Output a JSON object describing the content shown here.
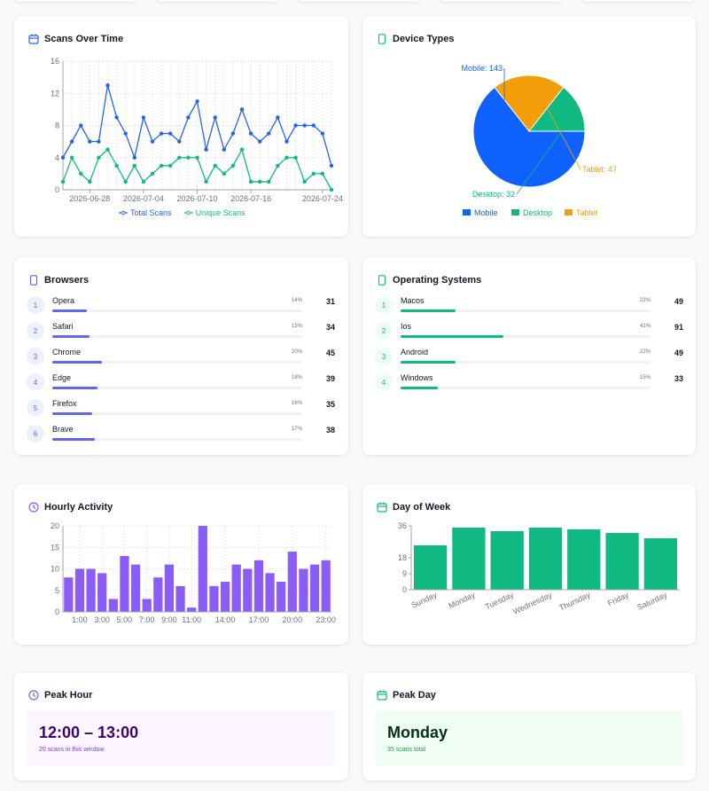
{
  "colors": {
    "blue": "#2563eb",
    "green": "#10b981",
    "purple": "#8b5cf6",
    "orange": "#f59e0b",
    "mobile": "#0f62fe",
    "tablet": "#f59e0b",
    "desktop": "#10b981"
  },
  "scans_over_time": {
    "title": "Scans Over Time",
    "icon": "calendar-icon",
    "legend": [
      "Total Scans",
      "Unique Scans"
    ]
  },
  "device_types": {
    "title": "Device Types",
    "icon": "smartphone-icon",
    "labels": {
      "mobile": "Mobile: 143",
      "tablet": "Tablet: 47",
      "desktop": "Desktop: 32"
    },
    "legend": [
      "Mobile",
      "Desktop",
      "Tablet"
    ]
  },
  "browsers": {
    "title": "Browsers",
    "icon": "smartphone-icon",
    "items": [
      {
        "rank": "1",
        "label": "Opera",
        "pct": "14%",
        "count": "31",
        "fraction": 0.14
      },
      {
        "rank": "2",
        "label": "Safari",
        "pct": "15%",
        "count": "34",
        "fraction": 0.15
      },
      {
        "rank": "3",
        "label": "Chrome",
        "pct": "20%",
        "count": "45",
        "fraction": 0.2
      },
      {
        "rank": "4",
        "label": "Edge",
        "pct": "18%",
        "count": "39",
        "fraction": 0.18
      },
      {
        "rank": "5",
        "label": "Firefox",
        "pct": "16%",
        "count": "35",
        "fraction": 0.16
      },
      {
        "rank": "6",
        "label": "Brave",
        "pct": "17%",
        "count": "38",
        "fraction": 0.17
      }
    ]
  },
  "operating_systems": {
    "title": "Operating Systems",
    "icon": "smartphone-icon",
    "items": [
      {
        "rank": "1",
        "label": "Macos",
        "pct": "22%",
        "count": "49",
        "fraction": 0.22
      },
      {
        "rank": "2",
        "label": "Ios",
        "pct": "41%",
        "count": "91",
        "fraction": 0.41
      },
      {
        "rank": "3",
        "label": "Android",
        "pct": "22%",
        "count": "49",
        "fraction": 0.22
      },
      {
        "rank": "4",
        "label": "Windows",
        "pct": "15%",
        "count": "33",
        "fraction": 0.15
      }
    ]
  },
  "hourly_activity": {
    "title": "Hourly Activity",
    "icon": "clock-icon"
  },
  "day_of_week": {
    "title": "Day of Week",
    "icon": "calendar-icon"
  },
  "peak_hour": {
    "title": "Peak Hour",
    "icon": "clock-icon",
    "value": "12:00 – 13:00",
    "sub": "20 scans in this window"
  },
  "peak_day": {
    "title": "Peak Day",
    "icon": "calendar-icon",
    "value": "Monday",
    "sub": "35 scans total"
  },
  "chart_data": [
    {
      "type": "line",
      "title": "Scans Over Time",
      "x": [
        "2026-06-25",
        "2026-06-26",
        "2026-06-27",
        "2026-06-28",
        "2026-06-29",
        "2026-06-30",
        "2026-07-01",
        "2026-07-02",
        "2026-07-03",
        "2026-07-04",
        "2026-07-05",
        "2026-07-06",
        "2026-07-07",
        "2026-07-08",
        "2026-07-09",
        "2026-07-10",
        "2026-07-11",
        "2026-07-12",
        "2026-07-13",
        "2026-07-14",
        "2026-07-15",
        "2026-07-16",
        "2026-07-17",
        "2026-07-18",
        "2026-07-19",
        "2026-07-20",
        "2026-07-21",
        "2026-07-22",
        "2026-07-23",
        "2026-07-24",
        "2026-07-25"
      ],
      "xticks": [
        "2026-06-28",
        "2026-07-04",
        "2026-07-10",
        "2026-07-16",
        "2026-07-24"
      ],
      "series": [
        {
          "name": "Total Scans",
          "values": [
            4,
            6,
            8,
            6,
            6,
            13,
            9,
            7,
            4,
            9,
            6,
            7,
            7,
            6,
            9,
            11,
            5,
            9,
            5,
            7,
            10,
            7,
            6,
            7,
            9,
            6,
            8,
            8,
            8,
            7,
            3
          ]
        },
        {
          "name": "Unique Scans",
          "values": [
            1,
            4,
            2,
            1,
            4,
            5,
            3,
            1,
            3,
            1,
            2,
            3,
            3,
            4,
            4,
            4,
            1,
            3,
            2,
            3,
            5,
            1,
            1,
            1,
            3,
            4,
            4,
            1,
            2,
            2,
            0
          ]
        }
      ],
      "ylim": [
        0,
        16
      ],
      "yticks": [
        0,
        4,
        8,
        12,
        16
      ],
      "grid": true,
      "legend": "bottom"
    },
    {
      "type": "pie",
      "title": "Device Types",
      "categories": [
        "Mobile",
        "Tablet",
        "Desktop"
      ],
      "values": [
        143,
        47,
        32
      ],
      "legend": "bottom"
    },
    {
      "type": "bar",
      "title": "Hourly Activity",
      "categories": [
        "0:00",
        "1:00",
        "2:00",
        "3:00",
        "4:00",
        "5:00",
        "6:00",
        "7:00",
        "8:00",
        "9:00",
        "10:00",
        "11:00",
        "12:00",
        "13:00",
        "14:00",
        "15:00",
        "16:00",
        "17:00",
        "18:00",
        "19:00",
        "20:00",
        "21:00",
        "22:00",
        "23:00"
      ],
      "xticks": [
        "1:00",
        "3:00",
        "5:00",
        "7:00",
        "9:00",
        "11:00",
        "14:00",
        "17:00",
        "20:00",
        "23:00"
      ],
      "values": [
        8,
        10,
        10,
        9,
        3,
        13,
        11,
        3,
        8,
        11,
        6,
        1,
        20,
        6,
        7,
        11,
        10,
        12,
        9,
        7,
        14,
        10,
        11,
        12
      ],
      "ylim": [
        0,
        20
      ],
      "yticks": [
        0,
        5,
        10,
        15,
        20
      ],
      "grid": true
    },
    {
      "type": "bar",
      "title": "Day of Week",
      "categories": [
        "Sunday",
        "Monday",
        "Tuesday",
        "Wednesday",
        "Thursday",
        "Friday",
        "Saturday"
      ],
      "values": [
        25,
        35,
        33,
        35,
        34,
        32,
        29
      ],
      "ylim": [
        0,
        36
      ],
      "yticks": [
        0,
        9,
        18,
        36
      ]
    }
  ]
}
